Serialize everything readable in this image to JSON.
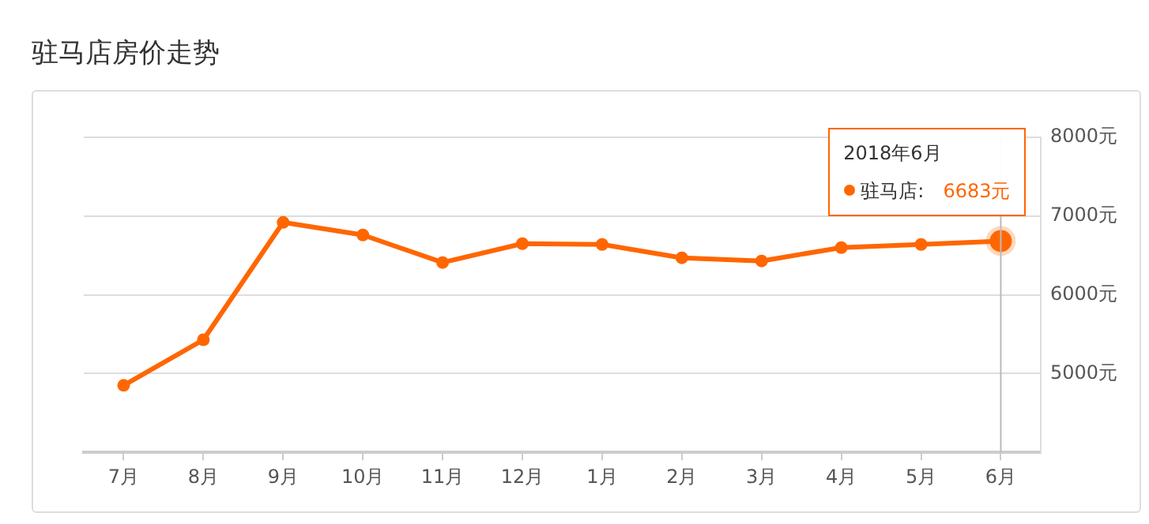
{
  "chart_data": {
    "type": "line",
    "title": "驻马店房价走势",
    "categories": [
      "7月",
      "8月",
      "9月",
      "10月",
      "11月",
      "12月",
      "1月",
      "2月",
      "3月",
      "4月",
      "5月",
      "6月"
    ],
    "series": [
      {
        "name": "驻马店:",
        "color": "#ff6600",
        "values": [
          4850,
          5430,
          6920,
          6760,
          6410,
          6650,
          6640,
          6470,
          6430,
          6600,
          6640,
          6683
        ],
        "value_labels": [
          null,
          null,
          null,
          null,
          null,
          null,
          null,
          null,
          null,
          null,
          null,
          "6683元"
        ]
      }
    ],
    "ylim": [
      4000,
      8000
    ],
    "yticks": [
      {
        "value": 4000,
        "label": null
      },
      {
        "value": 5000,
        "label": "5000元"
      },
      {
        "value": 6000,
        "label": "6000元"
      },
      {
        "value": 7000,
        "label": "7000元"
      },
      {
        "value": 8000,
        "label": "8000元"
      }
    ],
    "grid": "y",
    "legend": "top right",
    "marker": "circle",
    "line_style": "solid",
    "ref_lines": [
      {
        "axis": "x",
        "value": "6月",
        "color": "#bbbbbb"
      }
    ],
    "annotations": [
      "2018年6月"
    ]
  }
}
